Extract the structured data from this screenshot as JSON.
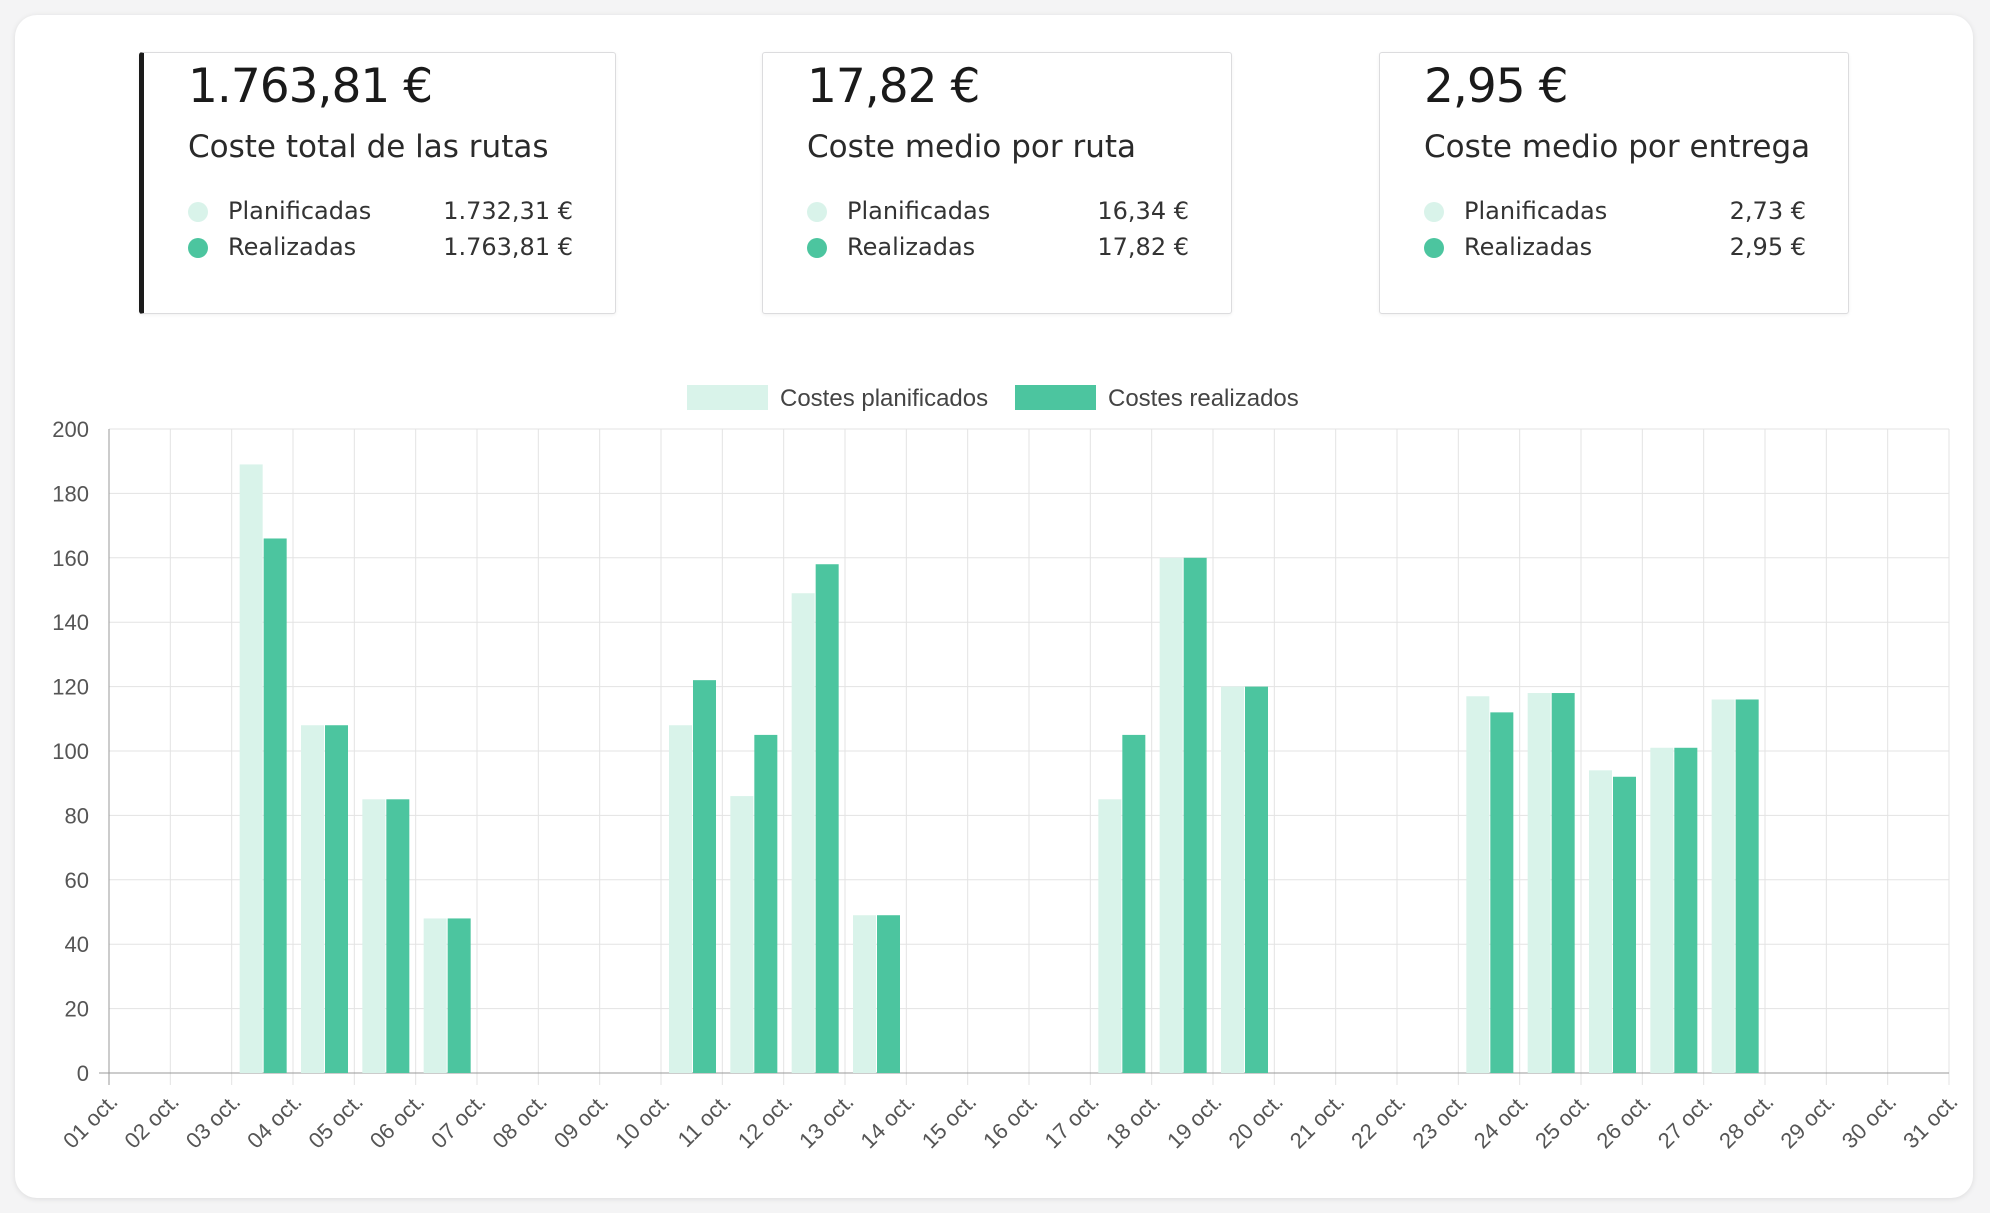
{
  "colors": {
    "planned": "#d9f3ea",
    "realized": "#4cc59f",
    "grid": "#e3e3e3",
    "axis": "#999999",
    "text": "#555555"
  },
  "summary_cards": [
    {
      "value": "1.763,81 €",
      "label": "Coste total de las rutas",
      "rows": [
        {
          "name": "Planificadas",
          "amount": "1.732,31 €"
        },
        {
          "name": "Realizadas",
          "amount": "1.763,81 €"
        }
      ]
    },
    {
      "value": "17,82 €",
      "label": "Coste medio por ruta",
      "rows": [
        {
          "name": "Planificadas",
          "amount": "16,34 €"
        },
        {
          "name": "Realizadas",
          "amount": "17,82 €"
        }
      ]
    },
    {
      "value": "2,95 €",
      "label": "Coste medio por entrega",
      "rows": [
        {
          "name": "Planificadas",
          "amount": "2,73 €"
        },
        {
          "name": "Realizadas",
          "amount": "2,95 €"
        }
      ]
    }
  ],
  "chart_data": {
    "type": "bar",
    "categories": [
      "01 oct.",
      "02 oct.",
      "03 oct.",
      "04 oct.",
      "05 oct.",
      "06 oct.",
      "07 oct.",
      "08 oct.",
      "09 oct.",
      "10 oct.",
      "11 oct.",
      "12 oct.",
      "13 oct.",
      "14 oct.",
      "15 oct.",
      "16 oct.",
      "17 oct.",
      "18 oct.",
      "19 oct.",
      "20 oct.",
      "21 oct.",
      "22 oct.",
      "23 oct.",
      "24 oct.",
      "25 oct.",
      "26 oct.",
      "27 oct.",
      "28 oct.",
      "29 oct.",
      "30 oct.",
      "31 oct."
    ],
    "series": [
      {
        "name": "Costes planificados",
        "values": [
          0,
          0,
          189,
          108,
          85,
          48,
          0,
          0,
          0,
          108,
          86,
          149,
          49,
          0,
          0,
          0,
          85,
          160,
          120,
          0,
          0,
          0,
          117,
          118,
          94,
          101,
          116,
          0,
          0,
          0,
          0
        ]
      },
      {
        "name": "Costes realizados",
        "values": [
          0,
          0,
          166,
          108,
          85,
          48,
          0,
          0,
          0,
          122,
          105,
          158,
          49,
          0,
          0,
          0,
          105,
          160,
          120,
          0,
          0,
          0,
          112,
          118,
          92,
          101,
          116,
          0,
          0,
          0,
          0
        ]
      }
    ],
    "ylim": [
      0,
      200
    ],
    "yticks": [
      0,
      20,
      40,
      60,
      80,
      100,
      120,
      140,
      160,
      180,
      200
    ],
    "grid": true,
    "legend_position": "top-center"
  }
}
